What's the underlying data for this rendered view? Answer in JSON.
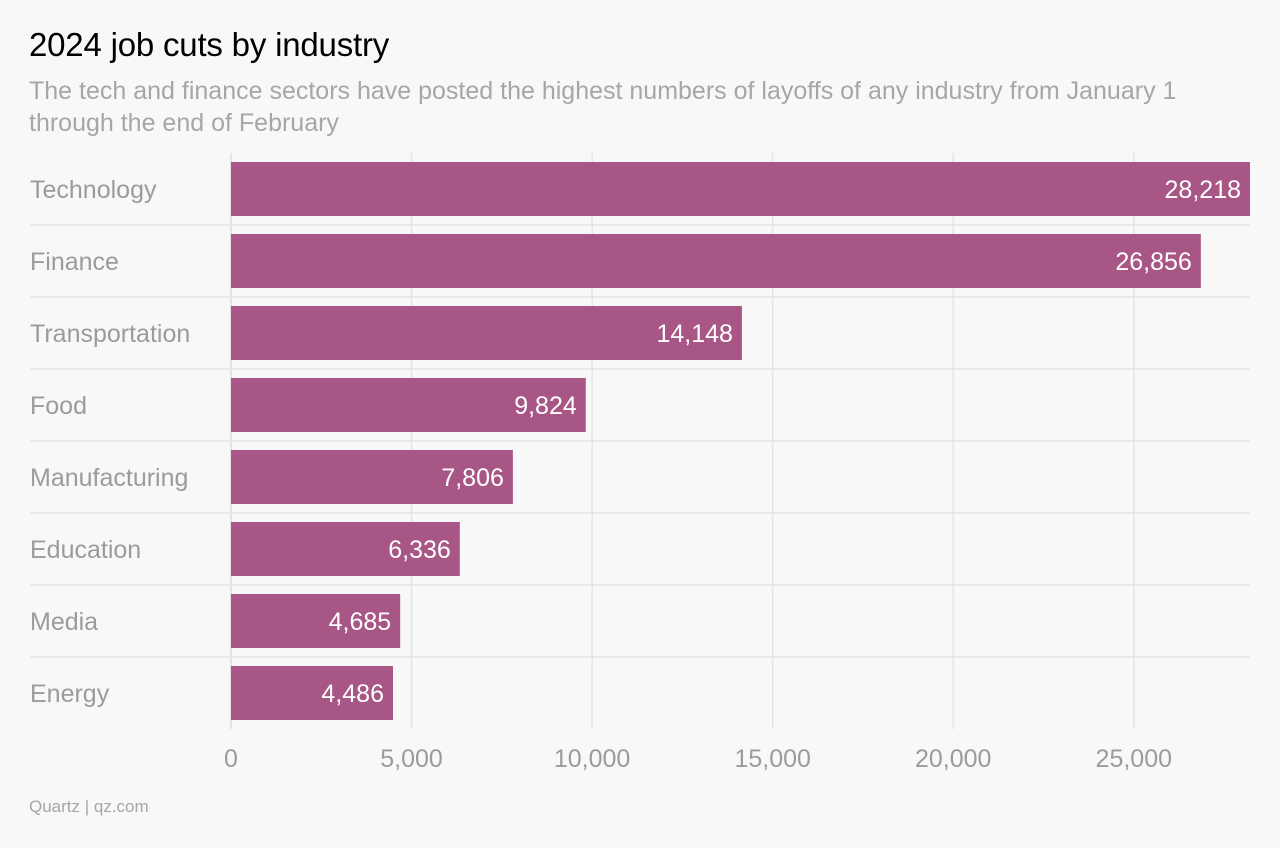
{
  "chart_data": {
    "type": "bar",
    "orientation": "horizontal",
    "title": "2024 job cuts by industry",
    "subtitle": "The tech and finance sectors have posted the highest numbers of layoffs of any industry from January 1 through the end of February",
    "source": "Quartz | qz.com",
    "categories": [
      "Technology",
      "Finance",
      "Transportation",
      "Food",
      "Manufacturing",
      "Education",
      "Media",
      "Energy"
    ],
    "values": [
      28218,
      26856,
      14148,
      9824,
      7806,
      6336,
      4685,
      4486
    ],
    "value_labels": [
      "28,218",
      "26,856",
      "14,148",
      "9,824",
      "7,806",
      "6,336",
      "4,685",
      "4,486"
    ],
    "x_ticks": [
      0,
      5000,
      10000,
      15000,
      20000,
      25000
    ],
    "x_tick_labels": [
      "0",
      "5,000",
      "10,000",
      "15,000",
      "20,000",
      "25,000"
    ],
    "xlim": [
      0,
      28218
    ],
    "grid": true,
    "bar_color": "#a85685",
    "xlabel": "",
    "ylabel": ""
  }
}
